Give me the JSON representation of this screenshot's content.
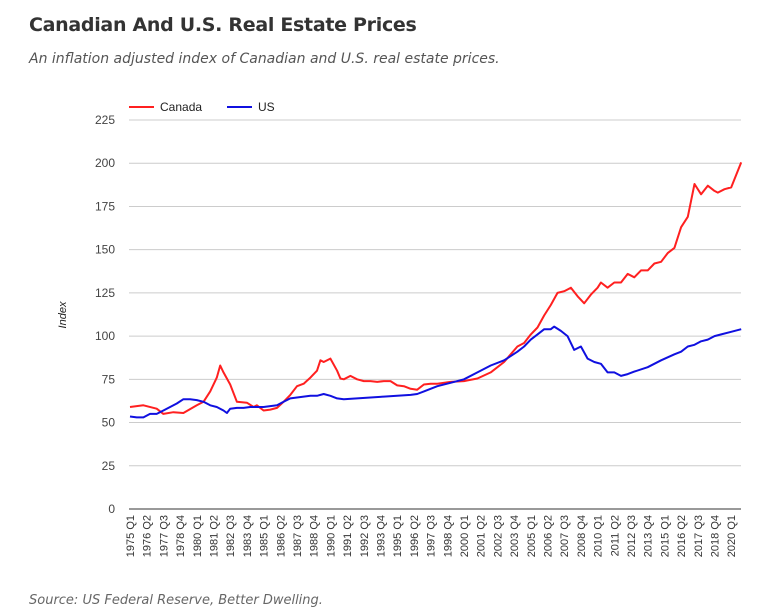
{
  "header": {
    "title": "Canadian And U.S. Real Estate Prices",
    "subtitle": "An inflation adjusted index of Canadian and U.S. real estate prices."
  },
  "footer": {
    "source": "Source: US Federal Reserve, Better Dwelling."
  },
  "chart_data": {
    "type": "line",
    "title": "Canadian And U.S. Real Estate Prices",
    "subtitle": "An inflation adjusted index of Canadian and U.S. real estate prices.",
    "xlabel": "",
    "ylabel": "Index",
    "ylim": [
      0,
      225
    ],
    "yticks": [
      0,
      25,
      50,
      75,
      100,
      125,
      150,
      175,
      200,
      225
    ],
    "grid": true,
    "legend_position": "top-left",
    "x_start": "1975 Q1",
    "x_end": "2020 Q4",
    "xtick_labels": [
      "1975 Q1",
      "1976 Q2",
      "1977 Q3",
      "1978 Q4",
      "1980 Q1",
      "1981 Q2",
      "1982 Q3",
      "1983 Q4",
      "1985 Q1",
      "1986 Q2",
      "1987 Q3",
      "1988 Q4",
      "1990 Q1",
      "1991 Q2",
      "1992 Q3",
      "1993 Q4",
      "1995 Q1",
      "1996 Q2",
      "1997 Q3",
      "1998 Q4",
      "2000 Q1",
      "2001 Q2",
      "2002 Q3",
      "2003 Q4",
      "2005 Q1",
      "2006 Q2",
      "2007 Q3",
      "2008 Q4",
      "2010 Q1",
      "2011 Q2",
      "2012 Q3",
      "2013 Q4",
      "2015 Q1",
      "2016 Q2",
      "2017 Q3",
      "2018 Q4",
      "2020 Q1"
    ],
    "series": [
      {
        "name": "Canada",
        "color": "#ff2020",
        "points": [
          [
            "1975 Q1",
            59
          ],
          [
            "1976 Q1",
            60
          ],
          [
            "1977 Q1",
            58
          ],
          [
            "1977 Q3",
            55
          ],
          [
            "1978 Q2",
            56
          ],
          [
            "1979 Q1",
            55.5
          ],
          [
            "1980 Q1",
            60
          ],
          [
            "1980 Q3",
            62
          ],
          [
            "1981 Q1",
            68
          ],
          [
            "1981 Q3",
            76
          ],
          [
            "1981 Q4",
            83
          ],
          [
            "1982 Q1",
            79
          ],
          [
            "1982 Q3",
            72
          ],
          [
            "1983 Q1",
            62
          ],
          [
            "1983 Q4",
            61.5
          ],
          [
            "1984 Q2",
            59
          ],
          [
            "1984 Q3",
            60
          ],
          [
            "1985 Q1",
            57
          ],
          [
            "1985 Q3",
            57.5
          ],
          [
            "1986 Q1",
            58.5
          ],
          [
            "1986 Q3",
            62
          ],
          [
            "1987 Q1",
            66
          ],
          [
            "1987 Q3",
            71
          ],
          [
            "1988 Q1",
            72.5
          ],
          [
            "1988 Q3",
            76
          ],
          [
            "1989 Q1",
            80
          ],
          [
            "1989 Q2",
            86
          ],
          [
            "1989 Q3",
            85
          ],
          [
            "1990 Q1",
            87
          ],
          [
            "1990 Q3",
            80
          ],
          [
            "1990 Q4",
            75.5
          ],
          [
            "1991 Q1",
            75
          ],
          [
            "1991 Q3",
            77
          ],
          [
            "1992 Q1",
            75
          ],
          [
            "1992 Q3",
            74
          ],
          [
            "1993 Q1",
            74
          ],
          [
            "1993 Q3",
            73.5
          ],
          [
            "1994 Q1",
            74
          ],
          [
            "1994 Q3",
            74
          ],
          [
            "1995 Q1",
            71.5
          ],
          [
            "1995 Q3",
            71
          ],
          [
            "1996 Q1",
            69.5
          ],
          [
            "1996 Q3",
            69
          ],
          [
            "1997 Q1",
            72
          ],
          [
            "1997 Q3",
            72.5
          ],
          [
            "1998 Q1",
            72.5
          ],
          [
            "1999 Q1",
            73.5
          ],
          [
            "2000 Q1",
            74
          ],
          [
            "2001 Q1",
            75.5
          ],
          [
            "2002 Q1",
            79
          ],
          [
            "2003 Q1",
            85
          ],
          [
            "2004 Q1",
            94
          ],
          [
            "2004 Q3",
            96
          ],
          [
            "2005 Q1",
            101
          ],
          [
            "2005 Q3",
            105
          ],
          [
            "2006 Q1",
            112
          ],
          [
            "2006 Q3",
            118
          ],
          [
            "2007 Q1",
            125
          ],
          [
            "2007 Q3",
            126
          ],
          [
            "2008 Q1",
            128
          ],
          [
            "2008 Q3",
            123
          ],
          [
            "2009 Q1",
            119
          ],
          [
            "2009 Q3",
            124
          ],
          [
            "2010 Q1",
            128
          ],
          [
            "2010 Q2",
            131
          ],
          [
            "2010 Q4",
            128
          ],
          [
            "2011 Q2",
            131
          ],
          [
            "2011 Q4",
            131
          ],
          [
            "2012 Q2",
            136
          ],
          [
            "2012 Q4",
            134
          ],
          [
            "2013 Q2",
            138
          ],
          [
            "2013 Q4",
            138
          ],
          [
            "2014 Q2",
            142
          ],
          [
            "2014 Q4",
            143
          ],
          [
            "2015 Q2",
            148
          ],
          [
            "2015 Q4",
            151
          ],
          [
            "2016 Q2",
            163
          ],
          [
            "2016 Q4",
            169
          ],
          [
            "2017 Q2",
            188
          ],
          [
            "2017 Q4",
            182
          ],
          [
            "2018 Q2",
            187
          ],
          [
            "2018 Q4",
            184
          ],
          [
            "2019 Q1",
            183
          ],
          [
            "2019 Q3",
            185
          ],
          [
            "2020 Q1",
            186
          ],
          [
            "2020 Q4",
            200.5
          ]
        ]
      },
      {
        "name": "US",
        "color": "#1010e0",
        "points": [
          [
            "1975 Q1",
            53.5
          ],
          [
            "1975 Q3",
            53
          ],
          [
            "1976 Q1",
            53
          ],
          [
            "1976 Q3",
            55
          ],
          [
            "1977 Q1",
            55
          ],
          [
            "1977 Q3",
            57
          ],
          [
            "1978 Q1",
            59
          ],
          [
            "1978 Q3",
            61
          ],
          [
            "1979 Q1",
            63.5
          ],
          [
            "1979 Q3",
            63.5
          ],
          [
            "1980 Q1",
            63
          ],
          [
            "1980 Q3",
            62
          ],
          [
            "1981 Q1",
            60
          ],
          [
            "1981 Q3",
            59
          ],
          [
            "1982 Q1",
            57
          ],
          [
            "1982 Q2",
            55.5
          ],
          [
            "1982 Q3",
            58
          ],
          [
            "1983 Q1",
            58.5
          ],
          [
            "1983 Q3",
            58.5
          ],
          [
            "1984 Q1",
            59
          ],
          [
            "1985 Q1",
            59
          ],
          [
            "1986 Q1",
            60
          ],
          [
            "1986 Q3",
            62
          ],
          [
            "1987 Q1",
            64
          ],
          [
            "1987 Q3",
            64.5
          ],
          [
            "1988 Q1",
            65
          ],
          [
            "1988 Q3",
            65.5
          ],
          [
            "1989 Q1",
            65.5
          ],
          [
            "1989 Q3",
            66.5
          ],
          [
            "1990 Q1",
            65.5
          ],
          [
            "1990 Q3",
            64
          ],
          [
            "1991 Q1",
            63.5
          ],
          [
            "1992 Q1",
            64
          ],
          [
            "1993 Q1",
            64.5
          ],
          [
            "1994 Q1",
            65
          ],
          [
            "1995 Q1",
            65.5
          ],
          [
            "1996 Q1",
            66
          ],
          [
            "1996 Q3",
            66.5
          ],
          [
            "1997 Q1",
            68
          ],
          [
            "1998 Q1",
            71
          ],
          [
            "1999 Q1",
            73
          ],
          [
            "2000 Q1",
            75
          ],
          [
            "2001 Q1",
            79
          ],
          [
            "2002 Q1",
            83
          ],
          [
            "2003 Q1",
            86
          ],
          [
            "2004 Q1",
            91
          ],
          [
            "2004 Q3",
            94
          ],
          [
            "2005 Q1",
            98
          ],
          [
            "2005 Q3",
            101
          ],
          [
            "2006 Q1",
            104
          ],
          [
            "2006 Q3",
            104
          ],
          [
            "2006 Q4",
            105.5
          ],
          [
            "2007 Q2",
            103
          ],
          [
            "2007 Q4",
            100
          ],
          [
            "2008 Q2",
            92
          ],
          [
            "2008 Q4",
            94
          ],
          [
            "2009 Q2",
            87
          ],
          [
            "2009 Q4",
            85
          ],
          [
            "2010 Q2",
            84
          ],
          [
            "2010 Q4",
            79
          ],
          [
            "2011 Q2",
            79
          ],
          [
            "2011 Q4",
            77
          ],
          [
            "2012 Q2",
            78
          ],
          [
            "2012 Q4",
            79.5
          ],
          [
            "2013 Q4",
            82
          ],
          [
            "2014 Q4",
            86
          ],
          [
            "2015 Q4",
            89.5
          ],
          [
            "2016 Q2",
            91
          ],
          [
            "2016 Q4",
            94
          ],
          [
            "2017 Q2",
            95
          ],
          [
            "2017 Q4",
            97
          ],
          [
            "2018 Q2",
            98
          ],
          [
            "2018 Q4",
            100
          ],
          [
            "2019 Q2",
            101
          ],
          [
            "2020 Q1",
            102.5
          ],
          [
            "2020 Q4",
            104
          ]
        ]
      }
    ]
  }
}
